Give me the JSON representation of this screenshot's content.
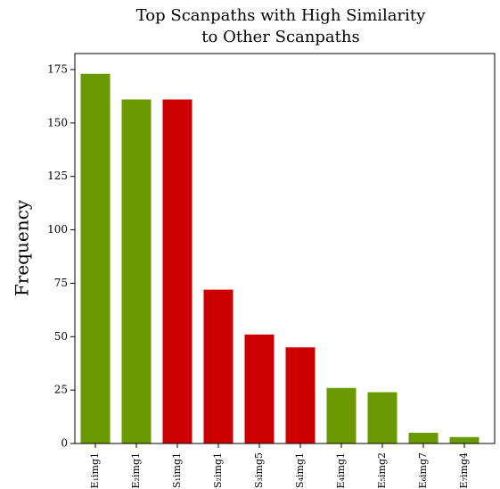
{
  "chart_data": {
    "type": "bar",
    "title": [
      "Top Scanpaths with High Similarity",
      "to Other Scanpaths"
    ],
    "ylabel": "Frequency",
    "categories": [
      "E₁img1",
      "E₂img1",
      "S₁img1",
      "S₂img1",
      "S₃img5",
      "S₄img1",
      "E₄img1",
      "E₅img2",
      "E₆img7",
      "E₇img4"
    ],
    "values": [
      173,
      161,
      161,
      72,
      51,
      45,
      26,
      24,
      5,
      3
    ],
    "colors": [
      "#6b9a00",
      "#6b9a00",
      "#cc0000",
      "#cc0000",
      "#cc0000",
      "#cc0000",
      "#6b9a00",
      "#6b9a00",
      "#6b9a00",
      "#6b9a00"
    ],
    "label_colors": [
      "#4a72c8",
      "#4a72c8",
      "#4a72c8",
      "#4a72c8",
      "#000000",
      "#4a72c8",
      "#4a72c8",
      "#000000",
      "#000000",
      "#000000"
    ],
    "ylim": [
      0,
      182.5
    ],
    "yticks": [
      0,
      25,
      50,
      75,
      100,
      125,
      150,
      175
    ],
    "grid": false
  }
}
